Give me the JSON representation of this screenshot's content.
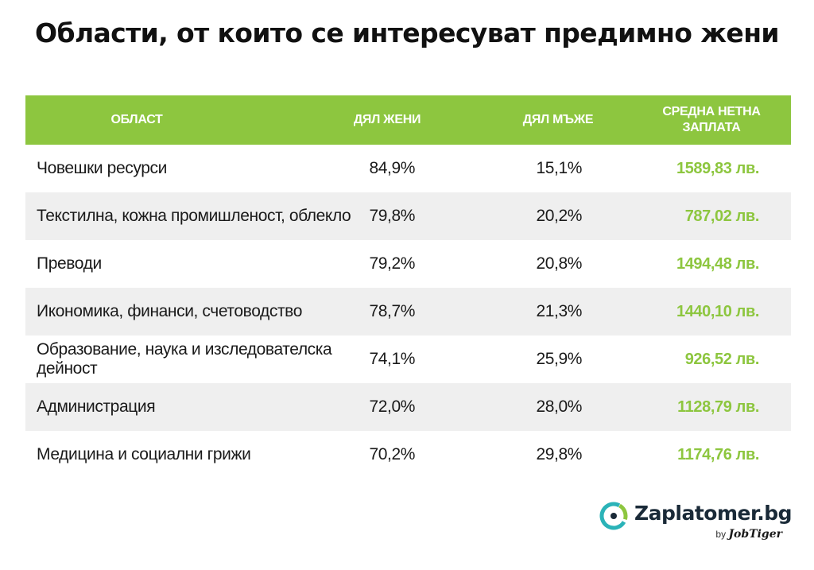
{
  "title": "Области, от които се интересуват предимно жени",
  "colors": {
    "accent": "#8dc63f",
    "alt_row": "#efefef",
    "logo_teal": "#2bb3b8"
  },
  "table": {
    "headers": [
      "ОБЛАСТ",
      "ДЯЛ ЖЕНИ",
      "ДЯЛ МЪЖЕ",
      "СРЕДНА НЕТНА ЗАПЛАТА"
    ],
    "rows": [
      {
        "area": "Човешки ресурси",
        "women": "84,9%",
        "men": "15,1%",
        "salary": "1589,83 лв."
      },
      {
        "area": "Текстилна, кожна промишленост, облекло",
        "women": "79,8%",
        "men": "20,2%",
        "salary": "787,02 лв."
      },
      {
        "area": "Преводи",
        "women": "79,2%",
        "men": "20,8%",
        "salary": "1494,48 лв."
      },
      {
        "area": "Икономика, финанси, счетоводство",
        "women": "78,7%",
        "men": "21,3%",
        "salary": "1440,10 лв."
      },
      {
        "area": "Образование, наука и изследователска дейност",
        "women": "74,1%",
        "men": "25,9%",
        "salary": "926,52 лв."
      },
      {
        "area": "Администрация",
        "women": "72,0%",
        "men": "28,0%",
        "salary": "1128,79 лв."
      },
      {
        "area": "Медицина и социални грижи",
        "women": "70,2%",
        "men": "29,8%",
        "salary": "1174,76 лв."
      }
    ]
  },
  "chart_data": {
    "type": "table",
    "title": "Области, от които се интересуват предимно жени",
    "columns": [
      "ОБЛАСТ",
      "ДЯЛ ЖЕНИ",
      "ДЯЛ МЪЖЕ",
      "СРЕДНА НЕТНА ЗАПЛАТА"
    ],
    "categories": [
      "Човешки ресурси",
      "Текстилна, кожна промишленост, облекло",
      "Преводи",
      "Икономика, финанси, счетоводство",
      "Образование, наука и изследователска дейност",
      "Администрация",
      "Медицина и социални грижи"
    ],
    "series": [
      {
        "name": "ДЯЛ ЖЕНИ",
        "values": [
          84.9,
          79.8,
          79.2,
          78.7,
          74.1,
          72.0,
          70.2
        ]
      },
      {
        "name": "ДЯЛ МЪЖЕ",
        "values": [
          15.1,
          20.2,
          20.8,
          21.3,
          25.9,
          28.0,
          29.8
        ]
      },
      {
        "name": "СРЕДНА НЕТНА ЗАПЛАТА",
        "values": [
          1589.83,
          787.02,
          1494.48,
          1440.1,
          926.52,
          1128.79,
          1174.76
        ]
      }
    ]
  },
  "logo": {
    "name": "Zaplatomer.bg",
    "by": "by",
    "brand": "JobTiger"
  }
}
